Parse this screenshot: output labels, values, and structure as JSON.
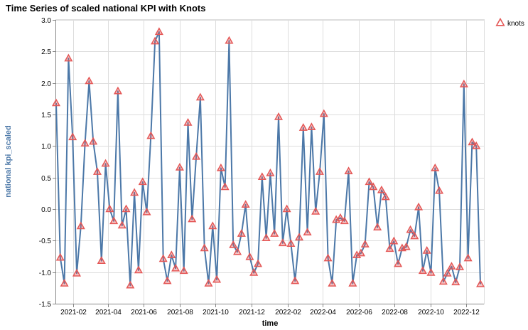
{
  "chart_data": {
    "type": "line",
    "title": "Time Series of scaled national KPI with Knots",
    "xlabel": "time",
    "ylabel": "national kpi_scaled",
    "x_range": [
      "2021-01-03",
      "2022-12-31"
    ],
    "ylim": [
      -1.5,
      3.0
    ],
    "y_ticks": [
      -1.5,
      -1.0,
      -0.5,
      0.0,
      0.5,
      1.0,
      1.5,
      2.0,
      2.5,
      3.0
    ],
    "x_ticks": [
      "2021-02",
      "2021-04",
      "2021-06",
      "2021-08",
      "2021-10",
      "2021-12",
      "2022-02",
      "2022-04",
      "2022-06",
      "2022-08",
      "2022-10",
      "2022-12"
    ],
    "x_tick_dates": [
      "2021-02-01",
      "2021-04-01",
      "2021-06-01",
      "2021-08-01",
      "2021-10-01",
      "2021-12-01",
      "2022-02-01",
      "2022-04-01",
      "2022-06-01",
      "2022-08-01",
      "2022-10-01",
      "2022-12-01"
    ],
    "grid": true,
    "legend": "top-right",
    "line_color": "#4c78a8",
    "knot_color": "#e45756",
    "series": [
      {
        "name": "knots",
        "points": [
          [
            "2021-01-03",
            1.68
          ],
          [
            "2021-01-10",
            -0.77
          ],
          [
            "2021-01-17",
            -1.18
          ],
          [
            "2021-01-24",
            2.39
          ],
          [
            "2021-01-31",
            1.14
          ],
          [
            "2021-02-07",
            -1.02
          ],
          [
            "2021-02-14",
            -0.27
          ],
          [
            "2021-02-21",
            1.04
          ],
          [
            "2021-02-28",
            2.03
          ],
          [
            "2021-03-07",
            1.07
          ],
          [
            "2021-03-14",
            0.59
          ],
          [
            "2021-03-21",
            -0.82
          ],
          [
            "2021-03-28",
            0.72
          ],
          [
            "2021-04-04",
            0.0
          ],
          [
            "2021-04-11",
            -0.19
          ],
          [
            "2021-04-18",
            1.87
          ],
          [
            "2021-04-25",
            -0.26
          ],
          [
            "2021-05-02",
            0.0
          ],
          [
            "2021-05-09",
            -1.21
          ],
          [
            "2021-05-16",
            0.26
          ],
          [
            "2021-05-23",
            -0.97
          ],
          [
            "2021-05-30",
            0.43
          ],
          [
            "2021-06-06",
            -0.05
          ],
          [
            "2021-06-13",
            1.16
          ],
          [
            "2021-06-20",
            2.66
          ],
          [
            "2021-06-27",
            2.81
          ],
          [
            "2021-07-04",
            -0.79
          ],
          [
            "2021-07-11",
            -1.14
          ],
          [
            "2021-07-18",
            -0.73
          ],
          [
            "2021-07-25",
            -0.94
          ],
          [
            "2021-08-01",
            0.66
          ],
          [
            "2021-08-08",
            -0.98
          ],
          [
            "2021-08-15",
            1.37
          ],
          [
            "2021-08-22",
            -0.16
          ],
          [
            "2021-08-29",
            0.83
          ],
          [
            "2021-09-05",
            1.77
          ],
          [
            "2021-09-12",
            -0.62
          ],
          [
            "2021-09-19",
            -1.18
          ],
          [
            "2021-09-26",
            -0.27
          ],
          [
            "2021-10-03",
            -1.12
          ],
          [
            "2021-10-10",
            0.65
          ],
          [
            "2021-10-17",
            0.35
          ],
          [
            "2021-10-24",
            2.67
          ],
          [
            "2021-10-31",
            -0.57
          ],
          [
            "2021-11-07",
            -0.68
          ],
          [
            "2021-11-14",
            -0.39
          ],
          [
            "2021-11-21",
            0.07
          ],
          [
            "2021-11-28",
            -0.76
          ],
          [
            "2021-12-05",
            -1.01
          ],
          [
            "2021-12-12",
            -0.87
          ],
          [
            "2021-12-19",
            0.51
          ],
          [
            "2021-12-26",
            -0.46
          ],
          [
            "2022-01-02",
            0.57
          ],
          [
            "2022-01-09",
            -0.39
          ],
          [
            "2022-01-16",
            1.46
          ],
          [
            "2022-01-23",
            -0.54
          ],
          [
            "2022-01-30",
            0.0
          ],
          [
            "2022-02-06",
            -0.55
          ],
          [
            "2022-02-13",
            -1.14
          ],
          [
            "2022-02-20",
            -0.45
          ],
          [
            "2022-02-27",
            1.29
          ],
          [
            "2022-03-06",
            -0.37
          ],
          [
            "2022-03-13",
            1.3
          ],
          [
            "2022-03-20",
            -0.04
          ],
          [
            "2022-03-27",
            0.59
          ],
          [
            "2022-04-03",
            1.51
          ],
          [
            "2022-04-10",
            -0.78
          ],
          [
            "2022-04-17",
            -1.18
          ],
          [
            "2022-04-24",
            -0.17
          ],
          [
            "2022-05-01",
            -0.14
          ],
          [
            "2022-05-08",
            -0.19
          ],
          [
            "2022-05-15",
            0.6
          ],
          [
            "2022-05-22",
            -1.18
          ],
          [
            "2022-05-29",
            -0.73
          ],
          [
            "2022-06-05",
            -0.7
          ],
          [
            "2022-06-12",
            -0.56
          ],
          [
            "2022-06-19",
            0.43
          ],
          [
            "2022-06-26",
            0.35
          ],
          [
            "2022-07-03",
            -0.29
          ],
          [
            "2022-07-10",
            0.3
          ],
          [
            "2022-07-17",
            0.19
          ],
          [
            "2022-07-24",
            -0.63
          ],
          [
            "2022-07-31",
            -0.51
          ],
          [
            "2022-08-07",
            -0.87
          ],
          [
            "2022-08-14",
            -0.62
          ],
          [
            "2022-08-21",
            -0.6
          ],
          [
            "2022-08-28",
            -0.33
          ],
          [
            "2022-09-04",
            -0.43
          ],
          [
            "2022-09-11",
            0.03
          ],
          [
            "2022-09-18",
            -0.98
          ],
          [
            "2022-09-25",
            -0.66
          ],
          [
            "2022-10-02",
            -1.01
          ],
          [
            "2022-10-09",
            0.65
          ],
          [
            "2022-10-16",
            0.29
          ],
          [
            "2022-10-23",
            -1.15
          ],
          [
            "2022-10-30",
            -1.02
          ],
          [
            "2022-11-06",
            -0.91
          ],
          [
            "2022-11-13",
            -1.16
          ],
          [
            "2022-11-20",
            -0.92
          ],
          [
            "2022-11-27",
            1.98
          ],
          [
            "2022-12-04",
            -0.78
          ],
          [
            "2022-12-11",
            1.06
          ],
          [
            "2022-12-18",
            1.0
          ],
          [
            "2022-12-25",
            -1.19
          ]
        ]
      }
    ]
  }
}
